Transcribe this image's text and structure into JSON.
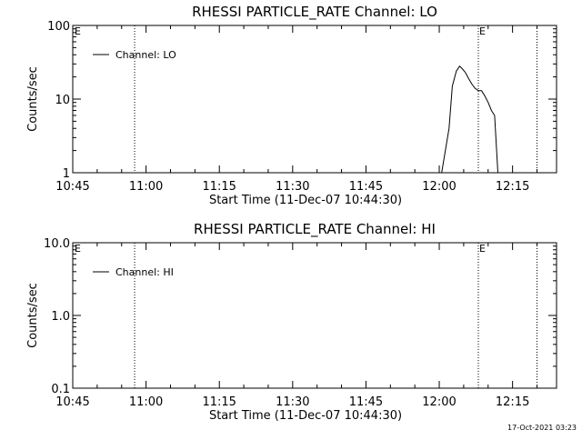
{
  "footer_timestamp": "17-Oct-2021 03:23",
  "chart_data": [
    {
      "type": "line",
      "title": "RHESSI PARTICLE_RATE Channel: LO",
      "xlabel": "Start Time (11-Dec-07 10:44:30)",
      "ylabel": "Counts/sec",
      "y_scale": "log",
      "ylim": [
        1,
        100
      ],
      "y_ticks": [
        1,
        10,
        100
      ],
      "y_tick_labels": [
        "1",
        "10",
        "100"
      ],
      "xlim": [
        "10:45",
        "12:24"
      ],
      "x_tick_labels": [
        "10:45",
        "11:00",
        "11:15",
        "11:30",
        "11:45",
        "12:00",
        "12:15"
      ],
      "legend": {
        "entries": [
          "Channel: LO"
        ],
        "placement": "top-left"
      },
      "markers": [
        {
          "time": "10:57:40",
          "label": ""
        },
        {
          "time": "12:08:00",
          "label": "E"
        },
        {
          "time": "12:20:00",
          "label": ""
        }
      ],
      "edge_labels": [
        "E"
      ],
      "series": [
        {
          "name": "Channel: LO",
          "x": [
            "12:00:30",
            "12:02:00",
            "12:02:40",
            "12:03:30",
            "12:04:10",
            "12:04:40",
            "12:05:20",
            "12:06:00",
            "12:06:40",
            "12:07:20",
            "12:08:00",
            "12:08:40",
            "12:09:20",
            "12:10:00",
            "12:10:40",
            "12:11:20",
            "12:12:00"
          ],
          "y": [
            1,
            4,
            15,
            24,
            28,
            26,
            23,
            19,
            16,
            14,
            13,
            13,
            11,
            9,
            7,
            6,
            1
          ]
        }
      ]
    },
    {
      "type": "line",
      "title": "RHESSI PARTICLE_RATE Channel: HI",
      "xlabel": "Start Time (11-Dec-07 10:44:30)",
      "ylabel": "Counts/sec",
      "y_scale": "log",
      "ylim": [
        0.1,
        10
      ],
      "y_ticks": [
        0.1,
        1,
        10
      ],
      "y_tick_labels": [
        "0.1",
        "1.0",
        "10.0"
      ],
      "xlim": [
        "10:45",
        "12:24"
      ],
      "x_tick_labels": [
        "10:45",
        "11:00",
        "11:15",
        "11:30",
        "11:45",
        "12:00",
        "12:15"
      ],
      "legend": {
        "entries": [
          "Channel: HI"
        ],
        "placement": "top-left"
      },
      "markers": [
        {
          "time": "10:57:40",
          "label": ""
        },
        {
          "time": "12:08:00",
          "label": "E"
        },
        {
          "time": "12:20:00",
          "label": ""
        }
      ],
      "edge_labels": [
        "E"
      ],
      "series": [
        {
          "name": "Channel: HI",
          "x": [],
          "y": []
        }
      ]
    }
  ]
}
